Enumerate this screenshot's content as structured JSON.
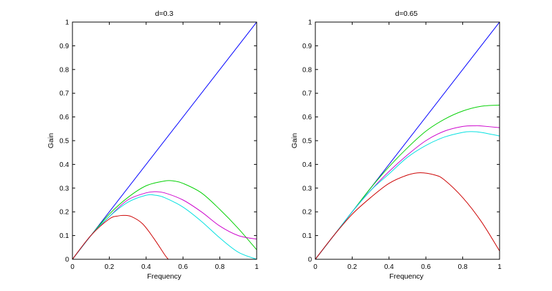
{
  "chart_data": [
    {
      "type": "line",
      "title": "d=0.3",
      "xlabel": "Frequency",
      "ylabel": "Gain",
      "xlim": [
        0,
        1
      ],
      "ylim": [
        0,
        1
      ],
      "xticks": [
        "0",
        "0.2",
        "0.4",
        "0.6",
        "0.8",
        "1"
      ],
      "yticks": [
        "0",
        "0.1",
        "0.2",
        "0.3",
        "0.4",
        "0.5",
        "0.6",
        "0.7",
        "0.8",
        "0.9",
        "1"
      ],
      "grid": false,
      "series": [
        {
          "color": "#0000ff",
          "x": [
            0,
            1
          ],
          "y": [
            0,
            1
          ]
        },
        {
          "color": "#00d000",
          "x": [
            0,
            0.1,
            0.2,
            0.3,
            0.4,
            0.5,
            0.55,
            0.6,
            0.7,
            0.8,
            0.9,
            1.0
          ],
          "y": [
            0,
            0.1,
            0.19,
            0.26,
            0.31,
            0.33,
            0.33,
            0.32,
            0.28,
            0.21,
            0.13,
            0.04
          ]
        },
        {
          "color": "#cc00cc",
          "x": [
            0,
            0.1,
            0.2,
            0.3,
            0.4,
            0.45,
            0.5,
            0.6,
            0.7,
            0.8,
            0.9,
            1.0
          ],
          "y": [
            0,
            0.1,
            0.18,
            0.25,
            0.28,
            0.285,
            0.28,
            0.25,
            0.2,
            0.14,
            0.1,
            0.085
          ]
        },
        {
          "color": "#00e0e0",
          "x": [
            0,
            0.1,
            0.2,
            0.3,
            0.4,
            0.45,
            0.5,
            0.6,
            0.7,
            0.8,
            0.9,
            1.0
          ],
          "y": [
            0,
            0.1,
            0.18,
            0.24,
            0.27,
            0.27,
            0.26,
            0.22,
            0.16,
            0.09,
            0.03,
            0.0
          ]
        },
        {
          "color": "#cc0000",
          "x": [
            0,
            0.1,
            0.2,
            0.25,
            0.28,
            0.32,
            0.38,
            0.44,
            0.5,
            0.52
          ],
          "y": [
            0,
            0.1,
            0.17,
            0.183,
            0.185,
            0.18,
            0.15,
            0.09,
            0.02,
            0.0
          ]
        }
      ]
    },
    {
      "type": "line",
      "title": "d=0.65",
      "xlabel": "Frequency",
      "ylabel": "Gain",
      "xlim": [
        0,
        1
      ],
      "ylim": [
        0,
        1
      ],
      "xticks": [
        "0",
        "0.2",
        "0.4",
        "0.6",
        "0.8",
        "1"
      ],
      "yticks": [
        "0",
        "0.1",
        "0.2",
        "0.3",
        "0.4",
        "0.5",
        "0.6",
        "0.7",
        "0.8",
        "0.9",
        "1"
      ],
      "grid": false,
      "series": [
        {
          "color": "#0000ff",
          "x": [
            0,
            1
          ],
          "y": [
            0,
            1
          ]
        },
        {
          "color": "#00d000",
          "x": [
            0,
            0.1,
            0.2,
            0.3,
            0.4,
            0.5,
            0.6,
            0.7,
            0.8,
            0.9,
            1.0
          ],
          "y": [
            0,
            0.1,
            0.2,
            0.3,
            0.39,
            0.47,
            0.54,
            0.59,
            0.625,
            0.645,
            0.65
          ]
        },
        {
          "color": "#cc00cc",
          "x": [
            0,
            0.1,
            0.2,
            0.3,
            0.4,
            0.5,
            0.6,
            0.7,
            0.8,
            0.87,
            0.9,
            1.0
          ],
          "y": [
            0,
            0.1,
            0.2,
            0.29,
            0.37,
            0.44,
            0.5,
            0.54,
            0.56,
            0.563,
            0.562,
            0.555
          ]
        },
        {
          "color": "#00e0e0",
          "x": [
            0,
            0.1,
            0.2,
            0.3,
            0.4,
            0.5,
            0.6,
            0.7,
            0.8,
            0.85,
            0.9,
            1.0
          ],
          "y": [
            0,
            0.1,
            0.2,
            0.29,
            0.36,
            0.43,
            0.48,
            0.515,
            0.535,
            0.538,
            0.535,
            0.52
          ]
        },
        {
          "color": "#cc0000",
          "x": [
            0,
            0.1,
            0.2,
            0.3,
            0.4,
            0.5,
            0.57,
            0.65,
            0.7,
            0.8,
            0.9,
            1.0
          ],
          "y": [
            0,
            0.1,
            0.19,
            0.26,
            0.32,
            0.355,
            0.365,
            0.355,
            0.335,
            0.26,
            0.16,
            0.035
          ]
        }
      ]
    }
  ]
}
